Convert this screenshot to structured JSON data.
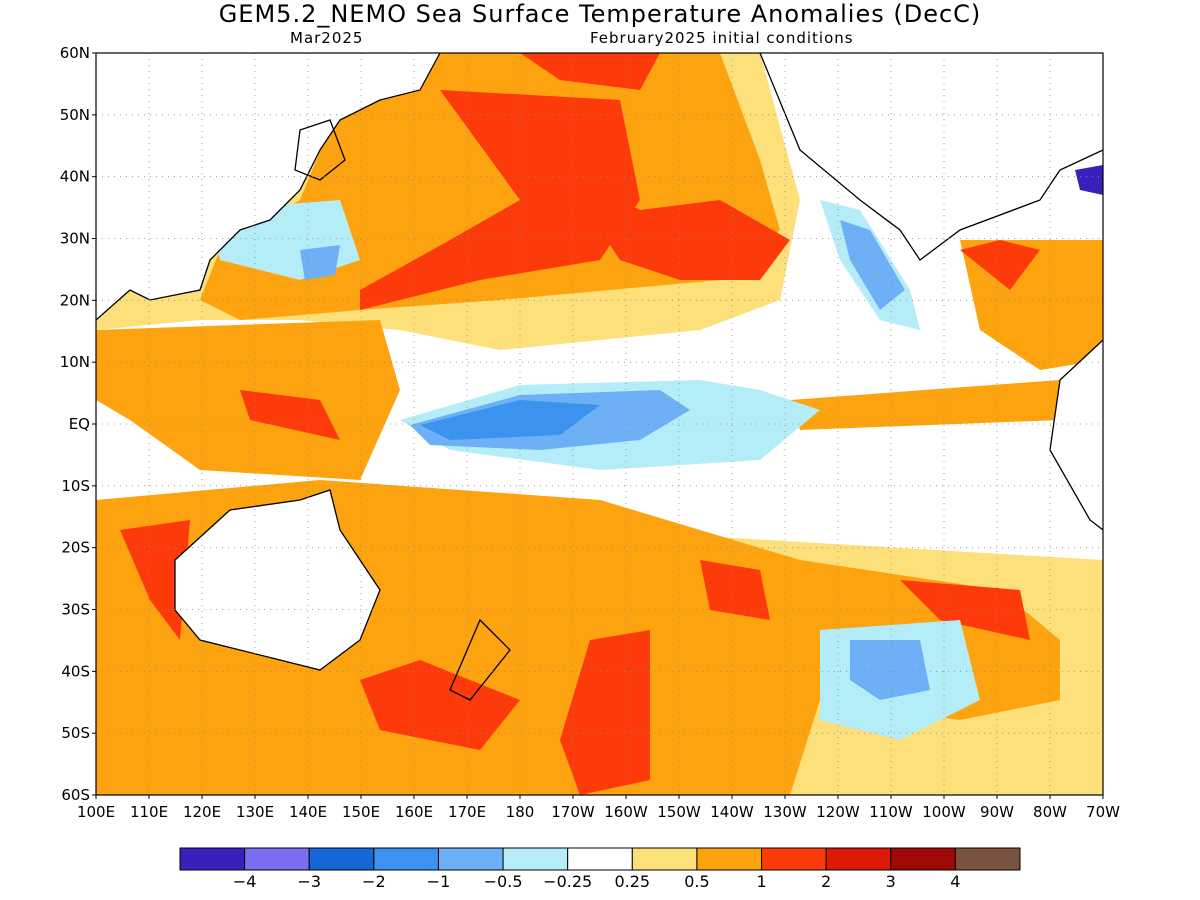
{
  "header": {
    "title": "GEM5.2_NEMO Sea Surface Temperature Anomalies (DecC)",
    "valid_month": "Mar2025",
    "initial_conditions": "February2025 initial conditions"
  },
  "map": {
    "lat_labels": [
      "60N",
      "50N",
      "40N",
      "30N",
      "20N",
      "10N",
      "EQ",
      "10S",
      "20S",
      "30S",
      "40S",
      "50S",
      "60S"
    ],
    "lon_labels": [
      "100E",
      "110E",
      "120E",
      "130E",
      "140E",
      "150E",
      "160E",
      "170E",
      "180",
      "170W",
      "160W",
      "150W",
      "140W",
      "130W",
      "120W",
      "110W",
      "100W",
      "90W",
      "80W",
      "70W"
    ],
    "lat_range": [
      -60,
      60
    ],
    "lon_range": [
      100,
      290
    ],
    "grid": "dotted"
  },
  "colorbar": {
    "colors": [
      "#3a1fbd",
      "#7a6ef0",
      "#1566d6",
      "#3b93ef",
      "#6eb0f5",
      "#b4ecf8",
      "#ffffff",
      "#fde07a",
      "#fda30f",
      "#fd3a0a",
      "#dd1908",
      "#a10808",
      "#7a5240"
    ],
    "labels": [
      "−4",
      "−3",
      "−2",
      "−1",
      "−0.5",
      "−0.25",
      "0.25",
      "0.5",
      "1",
      "2",
      "3",
      "4"
    ]
  }
}
